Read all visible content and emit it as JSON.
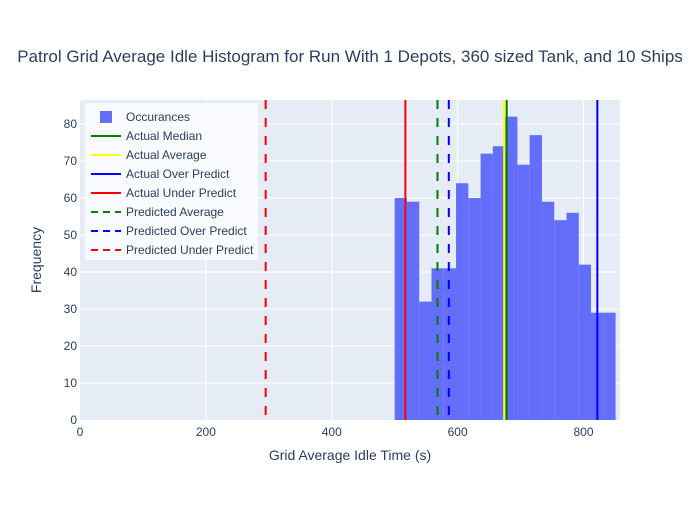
{
  "chart_data": {
    "type": "bar",
    "title": "Patrol Grid Average Idle Histogram for Run With 1 Depots, 360 sized Tank, and 10 Ships",
    "xlabel": "Grid Average Idle Time (s)",
    "ylabel": "Frequency",
    "xlim": [
      0,
      858
    ],
    "ylim": [
      0,
      86.5
    ],
    "x_ticks": [
      0,
      200,
      400,
      600,
      800
    ],
    "y_ticks": [
      0,
      10,
      20,
      30,
      40,
      50,
      60,
      70,
      80
    ],
    "grid": true,
    "legend_position": "top-left",
    "histogram": {
      "name": "Occurances",
      "color": "#636efa",
      "bin_width": 19.5,
      "bin_starts": [
        500,
        519.5,
        539,
        558.5,
        578,
        597.5,
        617,
        636.5,
        656,
        675.5,
        695,
        714.5,
        734,
        753.5,
        773,
        792.5,
        812,
        831.5
      ],
      "values": [
        60,
        59,
        32,
        41,
        41,
        64,
        60,
        72,
        74,
        82,
        69,
        77,
        59,
        54,
        56,
        42,
        29,
        29
      ]
    },
    "lines": [
      {
        "name": "Actual Median",
        "x": 678,
        "color": "#008000",
        "dash": "solid"
      },
      {
        "name": "Actual Average",
        "x": 674,
        "color": "#ffff00",
        "dash": "solid"
      },
      {
        "name": "Actual Over Predict",
        "x": 822,
        "color": "#0000ff",
        "dash": "solid"
      },
      {
        "name": "Actual Under Predict",
        "x": 517,
        "color": "#ff0000",
        "dash": "solid"
      },
      {
        "name": "Predicted Average",
        "x": 568,
        "color": "#008000",
        "dash": "dash"
      },
      {
        "name": "Predicted Over Predict",
        "x": 586,
        "color": "#0000ff",
        "dash": "dash"
      },
      {
        "name": "Predicted Under Predict",
        "x": 295,
        "color": "#ff0000",
        "dash": "dash"
      }
    ]
  },
  "colors": {
    "plot_background": "#e5ecf6",
    "grid": "#ffffff",
    "text": "#2a3f5f"
  }
}
